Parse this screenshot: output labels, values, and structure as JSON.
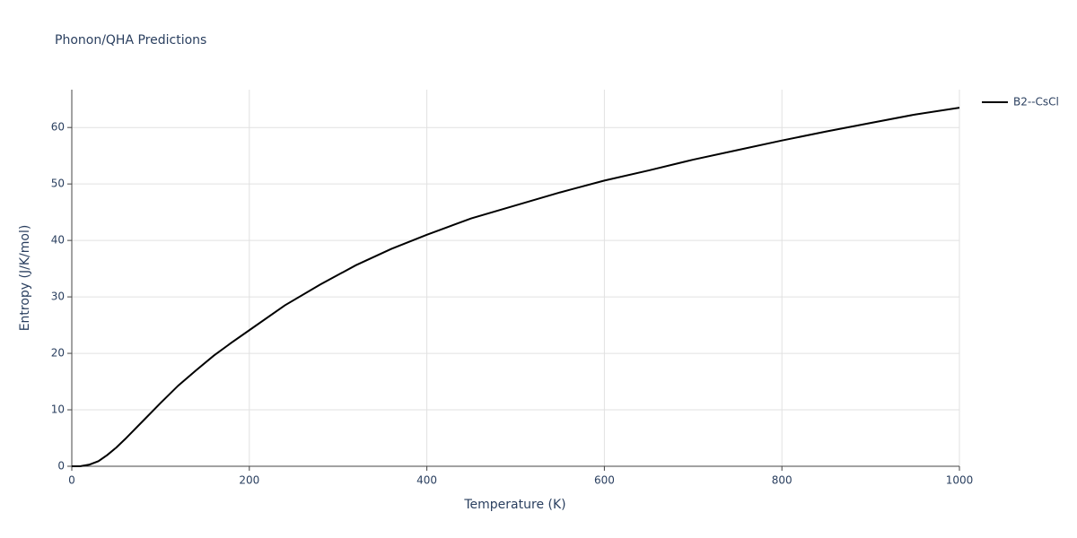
{
  "chart_data": {
    "type": "line",
    "title": "Phonon/QHA Predictions",
    "x_label": "Temperature (K)",
    "y_label": "Entropy (J/K/mol)",
    "x": [
      0,
      10,
      20,
      30,
      40,
      50,
      60,
      80,
      100,
      120,
      140,
      160,
      180,
      200,
      240,
      280,
      320,
      360,
      400,
      450,
      500,
      550,
      600,
      650,
      700,
      750,
      800,
      850,
      900,
      950,
      1000
    ],
    "series": [
      {
        "name": "B2--CsCl",
        "color": "#000000",
        "values": [
          0,
          0.02,
          0.3,
          0.9,
          2.0,
          3.3,
          4.8,
          8.0,
          11.2,
          14.3,
          17.0,
          19.6,
          21.9,
          24.1,
          28.5,
          32.2,
          35.6,
          38.5,
          41.0,
          43.9,
          46.2,
          48.5,
          50.6,
          52.4,
          54.3,
          56.0,
          57.7,
          59.3,
          60.8,
          62.3,
          63.5
        ]
      }
    ],
    "xlim": [
      0,
      1000
    ],
    "xticks": [
      0,
      200,
      400,
      600,
      800,
      1000
    ],
    "ylim": [
      0,
      66.7
    ],
    "yticks": [
      0,
      10,
      20,
      30,
      40,
      50,
      60
    ],
    "grid": true,
    "legend": "right"
  }
}
